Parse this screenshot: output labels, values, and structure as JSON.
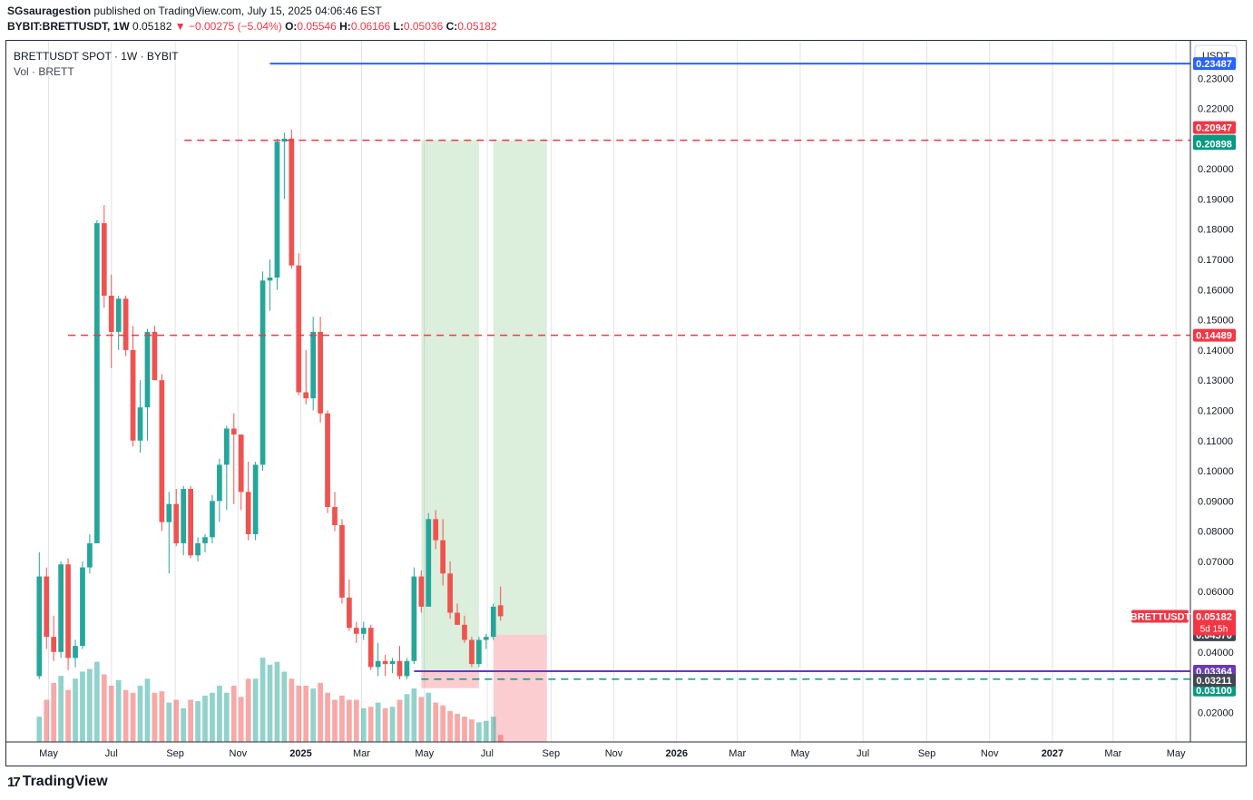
{
  "header": {
    "publisher": "SGsauragestion",
    "published_text": "published on TradingView.com, July 15, 2025 04:06:46 EST",
    "symbol_full": "BYBIT:BRETTUSDT, 1W",
    "last": "0.05182",
    "change": "▼ −0.00275 (−5.04%)",
    "o_label": "O:",
    "o": "0.05546",
    "h_label": "H:",
    "h": "0.06166",
    "l_label": "L:",
    "l": "0.05036",
    "c_label": "C:",
    "c": "0.05182"
  },
  "legend": {
    "title": "BRETTUSDT SPOT · 1W · BYBIT",
    "volume": "Vol · BRETT"
  },
  "brand": {
    "logo": "17",
    "name": "TradingView"
  },
  "colors": {
    "up": "#26a69a",
    "down": "#ef5350",
    "blue_line": "#2962ff",
    "purple_line": "#673ab7"
  },
  "chart_data": {
    "type": "candlestick",
    "currency_label": "USDT",
    "y_ticks": [
      "0.23000",
      "0.22000",
      "0.21000",
      "0.20000",
      "0.19000",
      "0.18000",
      "0.17000",
      "0.16000",
      "0.15000",
      "0.14000",
      "0.13000",
      "0.12000",
      "0.11000",
      "0.10000",
      "0.09000",
      "0.08000",
      "0.07000",
      "0.06000",
      "0.05000",
      "0.04000",
      "0.03000",
      "0.02000"
    ],
    "x_ticks": [
      {
        "label": "May",
        "date": "2024-05-01"
      },
      {
        "label": "Jul",
        "date": "2024-07-01"
      },
      {
        "label": "Sep",
        "date": "2024-09-01"
      },
      {
        "label": "Nov",
        "date": "2024-11-01"
      },
      {
        "label": "2025",
        "date": "2025-01-01"
      },
      {
        "label": "Mar",
        "date": "2025-03-01"
      },
      {
        "label": "May",
        "date": "2025-05-01"
      },
      {
        "label": "Jul",
        "date": "2025-07-01"
      },
      {
        "label": "Sep",
        "date": "2025-09-01"
      },
      {
        "label": "Nov",
        "date": "2025-11-01"
      },
      {
        "label": "2026",
        "date": "2026-01-01"
      },
      {
        "label": "Mar",
        "date": "2026-03-01"
      },
      {
        "label": "May",
        "date": "2026-05-01"
      },
      {
        "label": "Jul",
        "date": "2026-07-01"
      },
      {
        "label": "Sep",
        "date": "2026-09-01"
      },
      {
        "label": "Nov",
        "date": "2026-11-01"
      },
      {
        "label": "2027",
        "date": "2027-01-01"
      },
      {
        "label": "Mar",
        "date": "2027-03-01"
      },
      {
        "label": "May",
        "date": "2027-05-01"
      }
    ],
    "candles": [
      [
        "2024-04-22",
        0.032,
        0.073,
        0.031,
        0.065,
        18
      ],
      [
        "2024-04-29",
        0.065,
        0.068,
        0.041,
        0.045,
        30
      ],
      [
        "2024-05-06",
        0.045,
        0.052,
        0.037,
        0.04,
        42
      ],
      [
        "2024-05-13",
        0.04,
        0.07,
        0.038,
        0.069,
        47
      ],
      [
        "2024-05-20",
        0.069,
        0.071,
        0.034,
        0.038,
        37
      ],
      [
        "2024-05-27",
        0.038,
        0.044,
        0.035,
        0.042,
        45
      ],
      [
        "2024-06-03",
        0.042,
        0.07,
        0.041,
        0.068,
        50
      ],
      [
        "2024-06-10",
        0.068,
        0.079,
        0.066,
        0.076,
        52
      ],
      [
        "2024-06-17",
        0.076,
        0.183,
        0.076,
        0.182,
        57
      ],
      [
        "2024-06-24",
        0.182,
        0.188,
        0.154,
        0.158,
        48
      ],
      [
        "2024-07-01",
        0.158,
        0.165,
        0.134,
        0.146,
        40
      ],
      [
        "2024-07-08",
        0.146,
        0.158,
        0.14,
        0.157,
        44
      ],
      [
        "2024-07-15",
        0.157,
        0.158,
        0.138,
        0.14,
        37
      ],
      [
        "2024-07-22",
        0.14,
        0.148,
        0.108,
        0.11,
        35
      ],
      [
        "2024-07-29",
        0.11,
        0.13,
        0.106,
        0.121,
        40
      ],
      [
        "2024-08-05",
        0.121,
        0.147,
        0.11,
        0.146,
        45
      ],
      [
        "2024-08-12",
        0.146,
        0.148,
        0.13,
        0.13,
        35
      ],
      [
        "2024-08-19",
        0.13,
        0.132,
        0.08,
        0.083,
        36
      ],
      [
        "2024-08-26",
        0.083,
        0.093,
        0.066,
        0.089,
        28
      ],
      [
        "2024-09-02",
        0.089,
        0.094,
        0.075,
        0.076,
        30
      ],
      [
        "2024-09-09",
        0.076,
        0.095,
        0.072,
        0.094,
        24
      ],
      [
        "2024-09-16",
        0.094,
        0.095,
        0.071,
        0.072,
        30
      ],
      [
        "2024-09-23",
        0.072,
        0.078,
        0.07,
        0.076,
        29
      ],
      [
        "2024-09-30",
        0.076,
        0.079,
        0.073,
        0.078,
        33
      ],
      [
        "2024-10-07",
        0.078,
        0.092,
        0.076,
        0.09,
        35
      ],
      [
        "2024-10-14",
        0.09,
        0.104,
        0.083,
        0.102,
        40
      ],
      [
        "2024-10-21",
        0.102,
        0.115,
        0.087,
        0.114,
        35
      ],
      [
        "2024-10-28",
        0.114,
        0.119,
        0.089,
        0.112,
        40
      ],
      [
        "2024-11-04",
        0.112,
        0.112,
        0.087,
        0.093,
        32
      ],
      [
        "2024-11-11",
        0.093,
        0.103,
        0.077,
        0.079,
        45
      ],
      [
        "2024-11-18",
        0.079,
        0.103,
        0.077,
        0.102,
        45
      ],
      [
        "2024-11-25",
        0.102,
        0.166,
        0.1,
        0.163,
        60
      ],
      [
        "2024-12-02",
        0.163,
        0.17,
        0.153,
        0.164,
        55
      ],
      [
        "2024-12-09",
        0.164,
        0.21,
        0.16,
        0.209,
        57
      ],
      [
        "2024-12-16",
        0.209,
        0.212,
        0.19,
        0.21,
        50
      ],
      [
        "2024-12-23",
        0.21,
        0.213,
        0.167,
        0.168,
        45
      ],
      [
        "2024-12-30",
        0.168,
        0.172,
        0.125,
        0.126,
        40
      ],
      [
        "2025-01-06",
        0.126,
        0.14,
        0.122,
        0.124,
        40
      ],
      [
        "2025-01-13",
        0.124,
        0.151,
        0.12,
        0.146,
        38
      ],
      [
        "2025-01-20",
        0.146,
        0.151,
        0.116,
        0.119,
        42
      ],
      [
        "2025-01-27",
        0.119,
        0.12,
        0.086,
        0.088,
        35
      ],
      [
        "2025-02-03",
        0.088,
        0.093,
        0.08,
        0.082,
        30
      ],
      [
        "2025-02-10",
        0.082,
        0.084,
        0.056,
        0.058,
        33
      ],
      [
        "2025-02-17",
        0.058,
        0.064,
        0.047,
        0.048,
        30
      ],
      [
        "2025-02-24",
        0.048,
        0.05,
        0.043,
        0.046,
        30
      ],
      [
        "2025-03-03",
        0.046,
        0.05,
        0.044,
        0.048,
        24
      ],
      [
        "2025-03-10",
        0.048,
        0.049,
        0.034,
        0.035,
        25
      ],
      [
        "2025-03-17",
        0.035,
        0.043,
        0.032,
        0.037,
        28
      ],
      [
        "2025-03-24",
        0.037,
        0.039,
        0.032,
        0.036,
        24
      ],
      [
        "2025-03-31",
        0.036,
        0.038,
        0.033,
        0.037,
        25
      ],
      [
        "2025-04-07",
        0.037,
        0.042,
        0.031,
        0.032,
        30
      ],
      [
        "2025-04-14",
        0.032,
        0.038,
        0.031,
        0.037,
        34
      ],
      [
        "2025-04-21",
        0.037,
        0.068,
        0.036,
        0.065,
        38
      ],
      [
        "2025-04-28",
        0.065,
        0.067,
        0.053,
        0.055,
        32
      ],
      [
        "2025-05-05",
        0.055,
        0.086,
        0.055,
        0.084,
        35
      ],
      [
        "2025-05-12",
        0.084,
        0.087,
        0.074,
        0.077,
        28
      ],
      [
        "2025-05-19",
        0.077,
        0.084,
        0.062,
        0.066,
        26
      ],
      [
        "2025-05-26",
        0.066,
        0.07,
        0.051,
        0.053,
        22
      ],
      [
        "2025-06-02",
        0.053,
        0.056,
        0.049,
        0.049,
        20
      ],
      [
        "2025-06-09",
        0.049,
        0.052,
        0.043,
        0.044,
        18
      ],
      [
        "2025-06-16",
        0.044,
        0.045,
        0.035,
        0.036,
        16
      ],
      [
        "2025-06-23",
        0.036,
        0.045,
        0.035,
        0.044,
        14
      ],
      [
        "2025-06-30",
        0.044,
        0.046,
        0.041,
        0.045,
        15
      ],
      [
        "2025-07-07",
        0.045,
        0.056,
        0.044,
        0.055,
        18
      ],
      [
        "2025-07-14",
        0.05546,
        0.06166,
        0.05036,
        0.05182,
        5
      ]
    ],
    "horizontal_lines": [
      {
        "value": 0.23487,
        "label": "0.23487",
        "style": "solid",
        "color": "#2962ff",
        "label_bg": "#2962ff"
      },
      {
        "value": 0.20947,
        "label": "0.20947",
        "style": "dashed",
        "color": "#f23645",
        "label_bg": "#f23645"
      },
      {
        "value": 0.14489,
        "label": "0.14489",
        "style": "dashed",
        "color": "#f23645",
        "label_bg": "#f23645"
      },
      {
        "value": 0.03364,
        "label": "0.03364",
        "style": "solid",
        "color": "#673ab7",
        "label_bg": "#673ab7"
      },
      {
        "value": 0.031,
        "label": "0.03100",
        "style": "dashed",
        "color": "#089981",
        "label_bg": "#089981"
      }
    ],
    "extra_price_labels": [
      {
        "value": 0.20947,
        "label": "0.20947",
        "bg": "#089981"
      },
      {
        "value": 0.20898,
        "label": "0.20898",
        "bg": "#089981"
      },
      {
        "value": 0.0457,
        "label": "0.04570",
        "bg": "#434651"
      },
      {
        "value": 0.03211,
        "label": "0.03211",
        "bg": "#434651"
      }
    ],
    "last_price": {
      "value": 0.05182,
      "label": "0.05182",
      "symbol": "BRETTUSDT",
      "countdown": "5d 15h",
      "bg": "#f23645"
    },
    "positions": [
      {
        "start": "2025-04-28",
        "end": "2025-06-23",
        "entry": 0.03364,
        "target": 0.20947,
        "stop": 0.028
      },
      {
        "start": "2025-07-07",
        "end": "2025-08-28",
        "entry": 0.0457,
        "target": 0.20947,
        "stop": 0.01
      }
    ],
    "range_start": "2024-03-21",
    "range_end": "2027-05-15",
    "ylim": [
      0.0102,
      0.2424
    ],
    "volume_label": "Vol · BRETT"
  }
}
